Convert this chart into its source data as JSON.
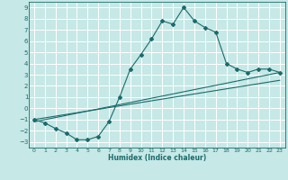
{
  "xlabel": "Humidex (Indice chaleur)",
  "xlim": [
    -0.5,
    23.5
  ],
  "ylim": [
    -3.5,
    9.5
  ],
  "xticks": [
    0,
    1,
    2,
    3,
    4,
    5,
    6,
    7,
    8,
    9,
    10,
    11,
    12,
    13,
    14,
    15,
    16,
    17,
    18,
    19,
    20,
    21,
    22,
    23
  ],
  "yticks": [
    -3,
    -2,
    -1,
    0,
    1,
    2,
    3,
    4,
    5,
    6,
    7,
    8,
    9
  ],
  "bg_color": "#c6e8e6",
  "grid_color": "#ffffff",
  "line_color": "#1a6b6b",
  "line1_x": [
    0,
    1,
    2,
    3,
    4,
    5,
    6,
    7,
    8,
    9,
    10,
    11,
    12,
    13,
    14,
    15,
    16,
    17,
    18,
    19,
    20,
    21,
    22,
    23
  ],
  "line1_y": [
    -1.0,
    -1.3,
    -1.8,
    -2.2,
    -2.8,
    -2.8,
    -2.5,
    -1.2,
    1.0,
    3.5,
    4.8,
    6.2,
    7.8,
    7.5,
    9.0,
    7.8,
    7.2,
    6.8,
    4.0,
    3.5,
    3.2,
    3.5,
    3.5,
    3.2
  ],
  "line2_x": [
    0,
    23
  ],
  "line2_y": [
    -1.0,
    2.5
  ],
  "line3_x": [
    0,
    23
  ],
  "line3_y": [
    -1.2,
    3.2
  ]
}
